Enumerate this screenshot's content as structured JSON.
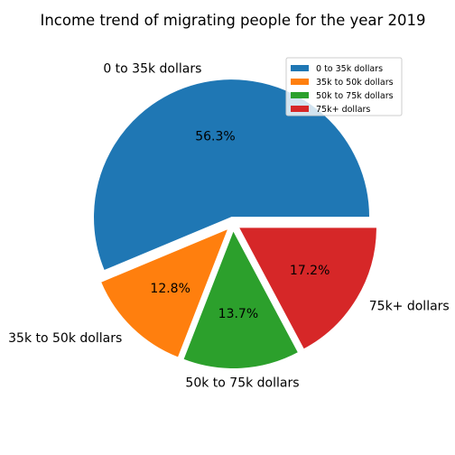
{
  "chart_data": {
    "type": "pie",
    "title": "Income trend of migrating people for the year 2019",
    "legend_position": "top-right",
    "slices": [
      {
        "label": "0 to 35k dollars",
        "value": 56.3,
        "pct_label": "56.3%",
        "color": "#1f77b4"
      },
      {
        "label": "35k to 50k dollars",
        "value": 12.8,
        "pct_label": "12.8%",
        "color": "#ff7f0e"
      },
      {
        "label": "50k to 75k dollars",
        "value": 13.7,
        "pct_label": "13.7%",
        "color": "#2ca02c"
      },
      {
        "label": "75k+ dollars",
        "value": 17.2,
        "pct_label": "17.2%",
        "color": "#d62728"
      }
    ]
  }
}
